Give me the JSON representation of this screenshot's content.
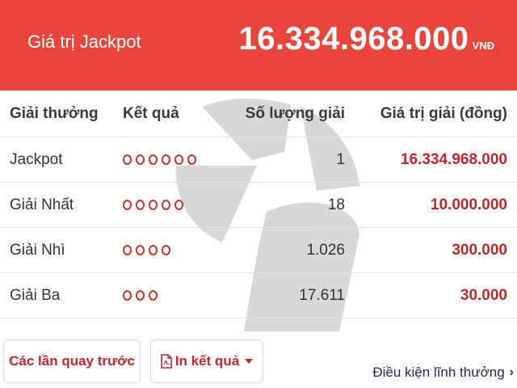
{
  "header": {
    "title": "Giá trị Jackpot",
    "amount": "16.334.968.000",
    "unit": "VNĐ"
  },
  "table": {
    "columns": [
      "Giải thưởng",
      "Kết quả",
      "Số lượng giải",
      "Giá trị giải (đồng)"
    ],
    "rows": [
      {
        "name": "Jackpot",
        "balls": 6,
        "count": "1",
        "value": "16.334.968.000"
      },
      {
        "name": "Giải Nhất",
        "balls": 5,
        "count": "18",
        "value": "10.000.000"
      },
      {
        "name": "Giải Nhì",
        "balls": 4,
        "count": "1.026",
        "value": "300.000"
      },
      {
        "name": "Giải Ba",
        "balls": 3,
        "count": "17.611",
        "value": "30.000"
      }
    ]
  },
  "actions": {
    "previous_draws": "Các lần quay trước",
    "print_results": "In kết quả",
    "print_icon": "pdf-icon",
    "terms_link": "Điều kiện lĩnh thưởng",
    "terms_icon": "chevron-right-icon"
  },
  "colors": {
    "header_bg": "#e8453c",
    "accent": "#c0272d"
  }
}
